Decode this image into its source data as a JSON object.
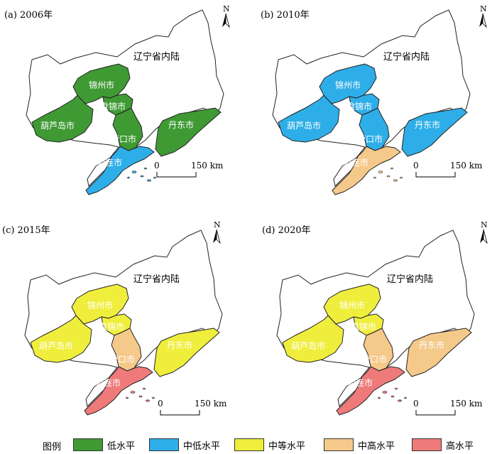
{
  "colors": {
    "low": "#3f9a34",
    "mid_low": "#2eaee8",
    "mid": "#f0ee3d",
    "mid_high": "#f5c98a",
    "high": "#ef7a7a"
  },
  "province_label": "辽宁省内陆",
  "scale": {
    "zero": "0",
    "distance": "150 km"
  },
  "north": "N",
  "city_names": {
    "jinzhou": "锦州市",
    "panjin": "盘锦市",
    "huludao": "葫芦岛市",
    "yingkou": "营口市",
    "dandong": "丹东市",
    "dalian": "大连市"
  },
  "panels": [
    {
      "title": "(a) 2006年",
      "levels": {
        "jinzhou": "low",
        "panjin": "low",
        "huludao": "low",
        "yingkou": "low",
        "dandong": "low",
        "dalian": "mid_low"
      }
    },
    {
      "title": "(b) 2010年",
      "levels": {
        "jinzhou": "mid_low",
        "panjin": "mid_low",
        "huludao": "mid_low",
        "yingkou": "mid_low",
        "dandong": "mid_low",
        "dalian": "mid_high"
      }
    },
    {
      "title": "(c) 2015年",
      "levels": {
        "jinzhou": "mid",
        "panjin": "mid",
        "huludao": "mid",
        "yingkou": "mid_high",
        "dandong": "mid",
        "dalian": "high"
      }
    },
    {
      "title": "(d) 2020年",
      "levels": {
        "jinzhou": "mid",
        "panjin": "mid",
        "huludao": "mid",
        "yingkou": "mid_high",
        "dandong": "mid_high",
        "dalian": "high"
      }
    }
  ],
  "legend": {
    "title": "图例",
    "items": [
      {
        "key": "low",
        "label": "低水平"
      },
      {
        "key": "mid_low",
        "label": "中低水平"
      },
      {
        "key": "mid",
        "label": "中等水平"
      },
      {
        "key": "mid_high",
        "label": "中高水平"
      },
      {
        "key": "high",
        "label": "高水平"
      }
    ]
  }
}
